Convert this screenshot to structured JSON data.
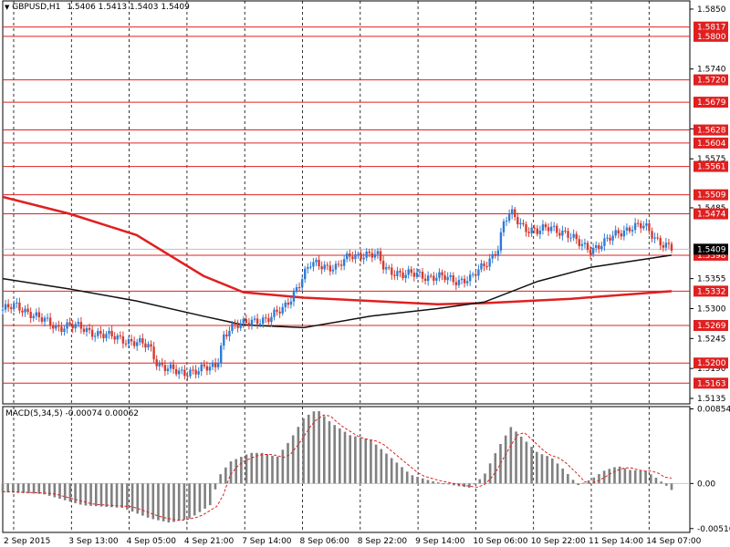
{
  "chart_header": {
    "dropdown_glyph": "▼",
    "symbol_label": "GBPUSD,H1",
    "ohlc_text": "1.5406  1.5413  1.5403  1.5409"
  },
  "macd_header": {
    "label": "MACD(5,34,5) -0.00074 0.00062"
  },
  "colors": {
    "background": "#ffffff",
    "candle_bull": "#2e7bd6",
    "candle_bear": "#d63a2e",
    "support_resistance_line": "#e02020",
    "ma_slow": "#e02020",
    "ma_fast": "#111111",
    "macd_histogram": "#808080",
    "macd_signal": "#e02020",
    "label_box": "#e02020",
    "current_price_box": "#000000"
  },
  "chart_data": {
    "type": "candlestick",
    "symbol": "GBPUSD",
    "timeframe": "H1",
    "price_axis_ticks": [
      "1.5850",
      "1.5740",
      "1.5630",
      "1.5575",
      "1.5485",
      "1.5355",
      "1.5300",
      "1.5245",
      "1.5190",
      "1.5135"
    ],
    "price_ylim": [
      1.5125,
      1.5865
    ],
    "current_price": "1.5409",
    "horizontal_levels": [
      "1.5817",
      "1.5800",
      "1.5720",
      "1.5679",
      "1.5628",
      "1.5604",
      "1.5561",
      "1.5509",
      "1.5474",
      "1.5398",
      "1.5332",
      "1.5269",
      "1.5200",
      "1.5163"
    ],
    "time_axis_labels": [
      "2 Sep 2015",
      "3 Sep 13:00",
      "4 Sep 05:00",
      "4 Sep 21:00",
      "7 Sep 14:00",
      "8 Sep 06:00",
      "8 Sep 22:00",
      "9 Sep 14:00",
      "10 Sep 06:00",
      "10 Sep 22:00",
      "11 Sep 14:00",
      "14 Sep 07:00"
    ],
    "price_path": [
      [
        0,
        1.5298
      ],
      [
        0.02,
        1.5304
      ],
      [
        0.04,
        1.5294
      ],
      [
        0.06,
        1.5278
      ],
      [
        0.08,
        1.5266
      ],
      [
        0.1,
        1.527
      ],
      [
        0.12,
        1.5262
      ],
      [
        0.14,
        1.5256
      ],
      [
        0.16,
        1.5248
      ],
      [
        0.18,
        1.5244
      ],
      [
        0.2,
        1.5238
      ],
      [
        0.22,
        1.5228
      ],
      [
        0.23,
        1.5202
      ],
      [
        0.24,
        1.5196
      ],
      [
        0.25,
        1.519
      ],
      [
        0.26,
        1.5182
      ],
      [
        0.27,
        1.5178
      ],
      [
        0.28,
        1.5186
      ],
      [
        0.3,
        1.5192
      ],
      [
        0.31,
        1.5188
      ],
      [
        0.32,
        1.5194
      ],
      [
        0.33,
        1.525
      ],
      [
        0.34,
        1.5268
      ],
      [
        0.36,
        1.527
      ],
      [
        0.38,
        1.528
      ],
      [
        0.4,
        1.5282
      ],
      [
        0.42,
        1.53
      ],
      [
        0.44,
        1.534
      ],
      [
        0.46,
        1.538
      ],
      [
        0.47,
        1.5382
      ],
      [
        0.48,
        1.538
      ],
      [
        0.5,
        1.5374
      ],
      [
        0.52,
        1.5398
      ],
      [
        0.54,
        1.54
      ],
      [
        0.56,
        1.5396
      ],
      [
        0.57,
        1.5376
      ],
      [
        0.59,
        1.5366
      ],
      [
        0.6,
        1.536
      ],
      [
        0.62,
        1.5364
      ],
      [
        0.64,
        1.5358
      ],
      [
        0.66,
        1.5356
      ],
      [
        0.68,
        1.5352
      ],
      [
        0.69,
        1.5354
      ],
      [
        0.7,
        1.5354
      ],
      [
        0.72,
        1.538
      ],
      [
        0.74,
        1.541
      ],
      [
        0.75,
        1.546
      ],
      [
        0.76,
        1.5474
      ],
      [
        0.78,
        1.545
      ],
      [
        0.8,
        1.544
      ],
      [
        0.82,
        1.545
      ],
      [
        0.84,
        1.544
      ],
      [
        0.86,
        1.542
      ],
      [
        0.88,
        1.541
      ],
      [
        0.9,
        1.542
      ],
      [
        0.92,
        1.544
      ],
      [
        0.94,
        1.545
      ],
      [
        0.96,
        1.545
      ],
      [
        0.98,
        1.5426
      ],
      [
        1.0,
        1.5409
      ]
    ],
    "ma_slow_path": [
      [
        0,
        1.5505
      ],
      [
        0.1,
        1.5474
      ],
      [
        0.2,
        1.5435
      ],
      [
        0.3,
        1.536
      ],
      [
        0.36,
        1.533
      ],
      [
        0.45,
        1.532
      ],
      [
        0.55,
        1.5314
      ],
      [
        0.65,
        1.5308
      ],
      [
        0.72,
        1.531
      ],
      [
        0.85,
        1.5318
      ],
      [
        1.0,
        1.5332
      ]
    ],
    "ma_fast_path": [
      [
        0,
        1.5355
      ],
      [
        0.1,
        1.5336
      ],
      [
        0.2,
        1.5314
      ],
      [
        0.3,
        1.5286
      ],
      [
        0.36,
        1.527
      ],
      [
        0.45,
        1.5265
      ],
      [
        0.55,
        1.5286
      ],
      [
        0.65,
        1.53
      ],
      [
        0.72,
        1.5312
      ],
      [
        0.8,
        1.535
      ],
      [
        0.88,
        1.5376
      ],
      [
        1.0,
        1.5398
      ]
    ],
    "macd_axis_ticks": [
      "0.00854",
      "0.00",
      "-0.00516"
    ],
    "macd_ylim": [
      -0.0056,
      0.0088
    ],
    "macd_value": -0.00074,
    "macd_signal_value": 0.00062
  }
}
